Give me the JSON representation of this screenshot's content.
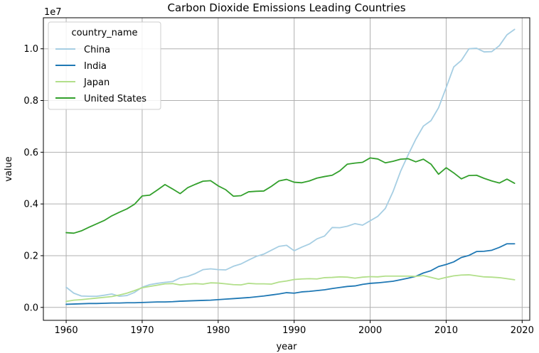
{
  "chart_data": {
    "type": "line",
    "title": "Carbon Dioxide Emissions Leading Countries",
    "xlabel": "year",
    "ylabel": "value",
    "y_offset_label": "1e7",
    "xlim": [
      1957,
      2021
    ],
    "ylim": [
      -0.05,
      1.12
    ],
    "x_ticks": [
      1960,
      1970,
      1980,
      1990,
      2000,
      2010,
      2020
    ],
    "y_ticks": [
      0.0,
      0.2,
      0.4,
      0.6,
      0.8,
      1.0
    ],
    "y_tick_labels": [
      "0.0",
      "0.2",
      "0.4",
      "0.6",
      "0.8",
      "1.0"
    ],
    "grid": true,
    "legend": {
      "title": "country_name",
      "position": "top-left"
    },
    "x": [
      1960,
      1961,
      1962,
      1963,
      1964,
      1965,
      1966,
      1967,
      1968,
      1969,
      1970,
      1971,
      1972,
      1973,
      1974,
      1975,
      1976,
      1977,
      1978,
      1979,
      1980,
      1981,
      1982,
      1983,
      1984,
      1985,
      1986,
      1987,
      1988,
      1989,
      1990,
      1991,
      1992,
      1993,
      1994,
      1995,
      1996,
      1997,
      1998,
      1999,
      2000,
      2001,
      2002,
      2003,
      2004,
      2005,
      2006,
      2007,
      2008,
      2009,
      2010,
      2011,
      2012,
      2013,
      2014,
      2015,
      2016,
      2017,
      2018,
      2019
    ],
    "series": [
      {
        "name": "China",
        "color": "#a6cee3",
        "values": [
          0.078,
          0.055,
          0.044,
          0.043,
          0.043,
          0.047,
          0.052,
          0.043,
          0.046,
          0.058,
          0.078,
          0.088,
          0.093,
          0.097,
          0.1,
          0.114,
          0.12,
          0.131,
          0.146,
          0.149,
          0.146,
          0.145,
          0.159,
          0.168,
          0.183,
          0.197,
          0.206,
          0.221,
          0.236,
          0.24,
          0.219,
          0.233,
          0.245,
          0.265,
          0.276,
          0.309,
          0.308,
          0.314,
          0.324,
          0.318,
          0.335,
          0.352,
          0.383,
          0.447,
          0.526,
          0.59,
          0.65,
          0.701,
          0.722,
          0.772,
          0.85,
          0.93,
          0.955,
          1.0,
          1.002,
          0.988,
          0.989,
          1.012,
          1.054,
          1.075
        ]
      },
      {
        "name": "India",
        "color": "#1f78b4",
        "values": [
          0.012,
          0.013,
          0.014,
          0.015,
          0.015,
          0.016,
          0.017,
          0.017,
          0.018,
          0.018,
          0.019,
          0.02,
          0.021,
          0.021,
          0.022,
          0.024,
          0.025,
          0.026,
          0.027,
          0.028,
          0.03,
          0.032,
          0.034,
          0.036,
          0.038,
          0.041,
          0.044,
          0.048,
          0.052,
          0.057,
          0.055,
          0.06,
          0.062,
          0.065,
          0.068,
          0.073,
          0.077,
          0.081,
          0.083,
          0.089,
          0.093,
          0.095,
          0.098,
          0.101,
          0.107,
          0.113,
          0.12,
          0.133,
          0.142,
          0.158,
          0.166,
          0.176,
          0.193,
          0.201,
          0.216,
          0.217,
          0.221,
          0.232,
          0.246,
          0.246
        ]
      },
      {
        "name": "Japan",
        "color": "#b2df8a",
        "values": [
          0.023,
          0.028,
          0.03,
          0.033,
          0.036,
          0.039,
          0.042,
          0.048,
          0.055,
          0.065,
          0.076,
          0.081,
          0.086,
          0.091,
          0.092,
          0.087,
          0.09,
          0.092,
          0.09,
          0.095,
          0.094,
          0.091,
          0.088,
          0.087,
          0.093,
          0.091,
          0.091,
          0.09,
          0.098,
          0.102,
          0.108,
          0.11,
          0.111,
          0.11,
          0.115,
          0.116,
          0.118,
          0.117,
          0.113,
          0.117,
          0.119,
          0.118,
          0.121,
          0.121,
          0.121,
          0.121,
          0.12,
          0.123,
          0.116,
          0.109,
          0.116,
          0.122,
          0.125,
          0.126,
          0.122,
          0.118,
          0.117,
          0.115,
          0.111,
          0.107
        ]
      },
      {
        "name": "United States",
        "color": "#33a02c",
        "values": [
          0.289,
          0.287,
          0.296,
          0.31,
          0.323,
          0.336,
          0.354,
          0.368,
          0.381,
          0.399,
          0.431,
          0.434,
          0.454,
          0.475,
          0.458,
          0.44,
          0.463,
          0.476,
          0.488,
          0.49,
          0.47,
          0.455,
          0.43,
          0.432,
          0.447,
          0.449,
          0.45,
          0.468,
          0.489,
          0.495,
          0.484,
          0.482,
          0.489,
          0.5,
          0.506,
          0.511,
          0.528,
          0.554,
          0.558,
          0.561,
          0.578,
          0.574,
          0.559,
          0.565,
          0.573,
          0.575,
          0.563,
          0.573,
          0.554,
          0.515,
          0.54,
          0.52,
          0.497,
          0.51,
          0.511,
          0.499,
          0.489,
          0.481,
          0.496,
          0.48
        ]
      }
    ]
  }
}
